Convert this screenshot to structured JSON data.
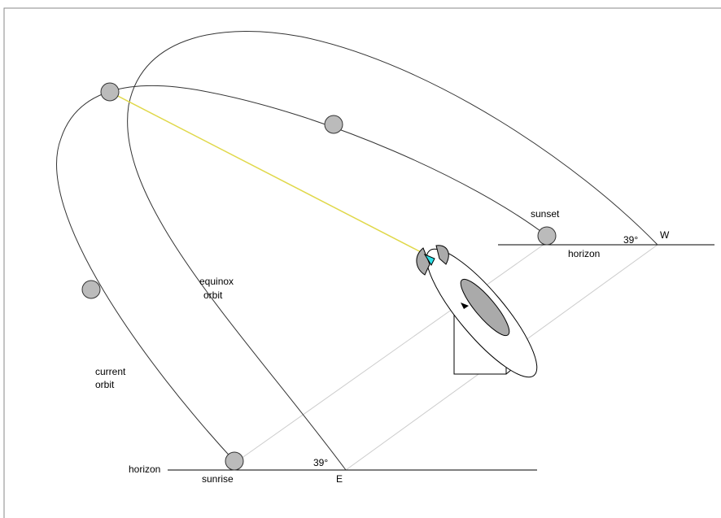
{
  "labels": {
    "sunset": "sunset",
    "west_angle": "39°",
    "west": "W",
    "west_horizon": "horizon",
    "equinox_orbit": [
      "equinox",
      "orbit"
    ],
    "current_orbit": [
      "current",
      "orbit"
    ],
    "east_horizon": "horizon",
    "east_angle": "39°",
    "sunrise": "sunrise",
    "east": "E"
  }
}
